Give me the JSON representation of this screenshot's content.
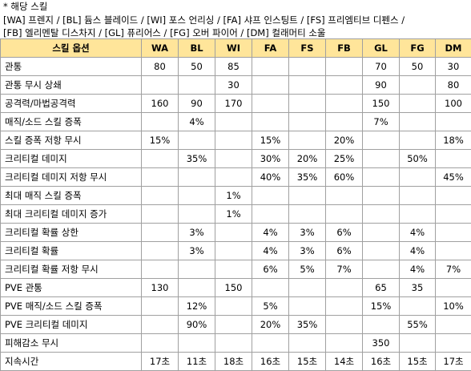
{
  "notes": {
    "title": "* 해당 스킬",
    "line1": "[WA] 프렌지 / [BL] 듐스 블레이드 / [WI] 포스 언리싱 / [FA] 샤프 인스팅트 / [FS] 프리엠티브 디펜스 /",
    "line2": "[FB] 엘리멘탈 디스차지 / [GL] 퓨리어스 / [FG] 오버 파이어 / [DM] 컬래머티 소울"
  },
  "table": {
    "headers": [
      "스킬 옵션",
      "WA",
      "BL",
      "WI",
      "FA",
      "FS",
      "FB",
      "GL",
      "FG",
      "DM"
    ],
    "rows": [
      [
        "관통",
        "80",
        "50",
        "85",
        "",
        "",
        "",
        "70",
        "50",
        "30"
      ],
      [
        "관통 무시 상쇄",
        "",
        "",
        "30",
        "",
        "",
        "",
        "90",
        "",
        "80"
      ],
      [
        "공격력/마법공격력",
        "160",
        "90",
        "170",
        "",
        "",
        "",
        "150",
        "",
        "100"
      ],
      [
        "매직/소드 스킬 증폭",
        "",
        "4%",
        "",
        "",
        "",
        "",
        "7%",
        "",
        ""
      ],
      [
        "스킬 증폭 저항 무시",
        "15%",
        "",
        "",
        "15%",
        "",
        "20%",
        "",
        "",
        "18%"
      ],
      [
        "크리티컬 데미지",
        "",
        "35%",
        "",
        "30%",
        "20%",
        "25%",
        "",
        "50%",
        ""
      ],
      [
        "크리티컬 데미지 저항 무시",
        "",
        "",
        "",
        "40%",
        "35%",
        "60%",
        "",
        "",
        "45%"
      ],
      [
        "최대 매직 스킬 증폭",
        "",
        "",
        "1%",
        "",
        "",
        "",
        "",
        "",
        ""
      ],
      [
        "최대 크리티컬 데미지 증가",
        "",
        "",
        "1%",
        "",
        "",
        "",
        "",
        "",
        ""
      ],
      [
        "크리티컬 확률 상한",
        "",
        "3%",
        "",
        "4%",
        "3%",
        "6%",
        "",
        "4%",
        ""
      ],
      [
        "크리티컬 확률",
        "",
        "3%",
        "",
        "4%",
        "3%",
        "6%",
        "",
        "4%",
        ""
      ],
      [
        "크리티컬 확률 저항 무시",
        "",
        "",
        "",
        "6%",
        "5%",
        "7%",
        "",
        "4%",
        "7%"
      ],
      [
        "PVE 관통",
        "130",
        "",
        "150",
        "",
        "",
        "",
        "65",
        "35",
        ""
      ],
      [
        "PVE 매직/소드 스킬 증폭",
        "",
        "12%",
        "",
        "5%",
        "",
        "",
        "15%",
        "",
        "10%"
      ],
      [
        "PVE 크리티컬 데미지",
        "",
        "90%",
        "",
        "20%",
        "35%",
        "",
        "",
        "55%",
        ""
      ],
      [
        "피해감소 무시",
        "",
        "",
        "",
        "",
        "",
        "",
        "350",
        "",
        ""
      ],
      [
        "지속시간",
        "17초",
        "11초",
        "18초",
        "16초",
        "15초",
        "14초",
        "16초",
        "15초",
        "17초"
      ]
    ]
  }
}
